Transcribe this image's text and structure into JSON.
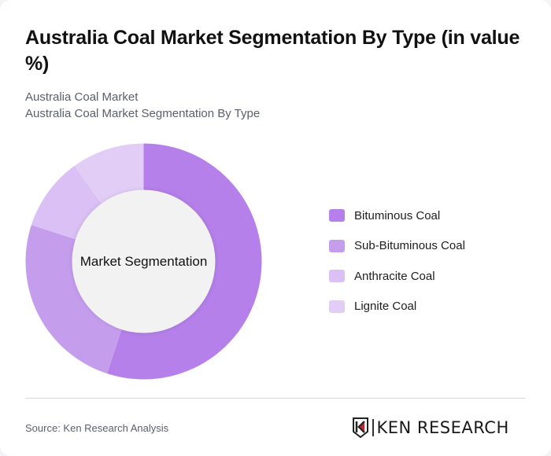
{
  "header": {
    "title": "Australia Coal Market Segmentation By Type (in value %)",
    "subtitle_line1": "Australia Coal Market",
    "subtitle_line2": "Australia Coal Market Segmentation By Type"
  },
  "chart": {
    "center_label": "Market Segmentation"
  },
  "legend": {
    "items": [
      {
        "label": "Bituminous Coal",
        "color": "#b580ea"
      },
      {
        "label": "Sub-Bituminous Coal",
        "color": "#c49ded"
      },
      {
        "label": "Anthracite Coal",
        "color": "#dac0f5"
      },
      {
        "label": "Lignite Coal",
        "color": "#e2cdf7"
      }
    ]
  },
  "footer": {
    "source": "Source: Ken Research Analysis",
    "logo_text": "KEN RESEARCH",
    "logo_icon": "ken-research-shield-logo"
  },
  "chart_data": {
    "type": "pie",
    "variant": "donut",
    "title": "Australia Coal Market Segmentation By Type (in value %)",
    "subtitle": "Australia Coal Market / Australia Coal Market Segmentation By Type",
    "center_label": "Market Segmentation",
    "categories": [
      "Bituminous Coal",
      "Sub-Bituminous Coal",
      "Anthracite Coal",
      "Lignite Coal"
    ],
    "values": [
      55,
      25,
      10,
      10
    ],
    "colors": [
      "#b580ea",
      "#c49ded",
      "#dac0f5",
      "#e2cdf7"
    ],
    "start_angle_deg": 0,
    "direction": "clockwise",
    "legend_position": "right",
    "data_labels": false,
    "source": "Source: Ken Research Analysis"
  }
}
